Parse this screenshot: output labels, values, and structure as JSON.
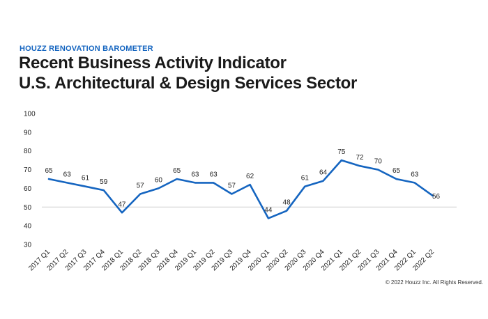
{
  "header": {
    "kicker": "HOUZZ RENOVATION BAROMETER",
    "title_line1": "Recent Business Activity Indicator",
    "title_line2": "U.S. Architectural & Design Services Sector"
  },
  "footer": {
    "copyright": "© 2022 Houzz Inc. All Rights Reserved."
  },
  "chart_data": {
    "type": "line",
    "title": "Recent Business Activity Indicator U.S. Architectural & Design Services Sector",
    "categories": [
      "2017 Q1",
      "2017 Q2",
      "2017 Q3",
      "2017 Q4",
      "2018 Q1",
      "2018 Q2",
      "2018 Q3",
      "2018 Q4",
      "2019 Q1",
      "2019 Q2",
      "2019 Q3",
      "2019 Q4",
      "2020 Q1",
      "2020 Q2",
      "2020 Q3",
      "2020 Q4",
      "2021 Q1",
      "2021 Q2",
      "2021 Q3",
      "2021 Q4",
      "2022 Q1",
      "2022 Q2"
    ],
    "series": [
      {
        "values": [
          65,
          63,
          61,
          59,
          47,
          57,
          60,
          65,
          63,
          63,
          57,
          62,
          44,
          48,
          61,
          64,
          75,
          72,
          70,
          65,
          63,
          56
        ],
        "color": "#1565c0"
      }
    ],
    "ylim": [
      30,
      100
    ],
    "yticks": [
      30,
      40,
      50,
      60,
      70,
      80,
      90,
      100
    ],
    "reference_line": 50,
    "grid": false,
    "xlabel": "",
    "ylabel": ""
  }
}
